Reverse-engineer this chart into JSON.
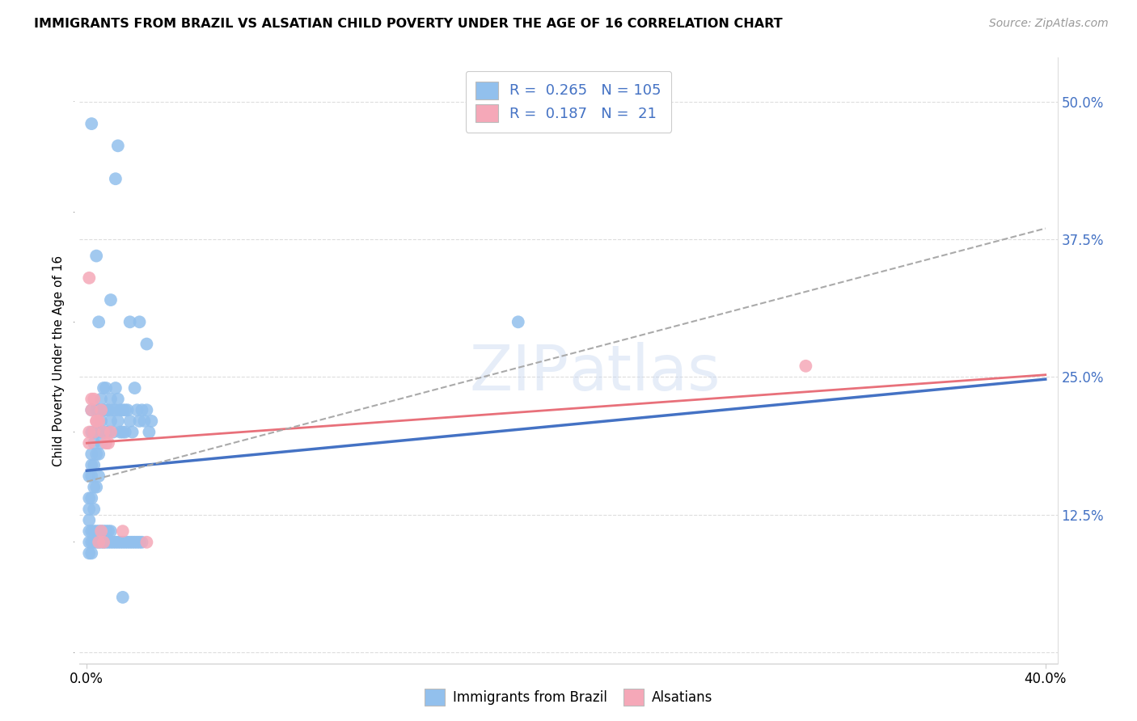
{
  "title": "IMMIGRANTS FROM BRAZIL VS ALSATIAN CHILD POVERTY UNDER THE AGE OF 16 CORRELATION CHART",
  "source": "Source: ZipAtlas.com",
  "ylabel": "Child Poverty Under the Age of 16",
  "legend_label1": "Immigrants from Brazil",
  "legend_label2": "Alsatians",
  "R1": "0.265",
  "N1": "105",
  "R2": "0.187",
  "N2": "21",
  "color_blue": "#92C0ED",
  "color_pink": "#F5A8B8",
  "color_blue_dark": "#4472C4",
  "color_pink_dark": "#E8707A",
  "color_gray_dashed": "#AAAAAA",
  "watermark": "ZIPatlas",
  "xlim": [
    0.0,
    0.4
  ],
  "ylim": [
    0.0,
    0.52
  ],
  "yticks": [
    0.0,
    0.125,
    0.25,
    0.375,
    0.5
  ],
  "ytick_labels": [
    "",
    "12.5%",
    "25.0%",
    "37.5%",
    "50.0%"
  ],
  "brazil_trend_start_y": 0.165,
  "brazil_trend_end_y": 0.248,
  "alsatian_trend_start_y": 0.19,
  "alsatian_trend_end_y": 0.252,
  "dashed_trend_start_y": 0.155,
  "dashed_trend_end_y": 0.385,
  "brazil_x": [
    0.001,
    0.001,
    0.001,
    0.001,
    0.001,
    0.002,
    0.002,
    0.002,
    0.002,
    0.002,
    0.002,
    0.003,
    0.003,
    0.003,
    0.003,
    0.003,
    0.004,
    0.004,
    0.004,
    0.004,
    0.005,
    0.005,
    0.005,
    0.005,
    0.006,
    0.006,
    0.006,
    0.007,
    0.007,
    0.007,
    0.008,
    0.008,
    0.008,
    0.009,
    0.009,
    0.01,
    0.01,
    0.011,
    0.011,
    0.012,
    0.012,
    0.013,
    0.013,
    0.014,
    0.014,
    0.015,
    0.015,
    0.016,
    0.016,
    0.017,
    0.018,
    0.019,
    0.02,
    0.021,
    0.022,
    0.023,
    0.024,
    0.025,
    0.026,
    0.027,
    0.001,
    0.001,
    0.002,
    0.002,
    0.002,
    0.003,
    0.003,
    0.004,
    0.004,
    0.005,
    0.005,
    0.006,
    0.006,
    0.007,
    0.007,
    0.008,
    0.008,
    0.009,
    0.009,
    0.01,
    0.01,
    0.011,
    0.012,
    0.013,
    0.014,
    0.015,
    0.016,
    0.017,
    0.018,
    0.019,
    0.02,
    0.021,
    0.022,
    0.023,
    0.18,
    0.002,
    0.012,
    0.018,
    0.013,
    0.022,
    0.004,
    0.005,
    0.025,
    0.01,
    0.015
  ],
  "brazil_y": [
    0.16,
    0.14,
    0.13,
    0.12,
    0.11,
    0.22,
    0.2,
    0.18,
    0.17,
    0.16,
    0.14,
    0.2,
    0.19,
    0.17,
    0.15,
    0.13,
    0.22,
    0.2,
    0.18,
    0.15,
    0.22,
    0.2,
    0.18,
    0.16,
    0.23,
    0.21,
    0.19,
    0.24,
    0.22,
    0.2,
    0.24,
    0.22,
    0.2,
    0.22,
    0.2,
    0.23,
    0.21,
    0.22,
    0.2,
    0.24,
    0.22,
    0.23,
    0.21,
    0.22,
    0.2,
    0.22,
    0.2,
    0.22,
    0.2,
    0.22,
    0.21,
    0.2,
    0.24,
    0.22,
    0.21,
    0.22,
    0.21,
    0.22,
    0.2,
    0.21,
    0.1,
    0.09,
    0.11,
    0.1,
    0.09,
    0.11,
    0.1,
    0.11,
    0.1,
    0.11,
    0.1,
    0.11,
    0.1,
    0.11,
    0.1,
    0.11,
    0.1,
    0.11,
    0.1,
    0.11,
    0.1,
    0.1,
    0.1,
    0.1,
    0.1,
    0.1,
    0.1,
    0.1,
    0.1,
    0.1,
    0.1,
    0.1,
    0.1,
    0.1,
    0.3,
    0.48,
    0.43,
    0.3,
    0.46,
    0.3,
    0.36,
    0.3,
    0.28,
    0.32,
    0.05
  ],
  "alsatian_x": [
    0.001,
    0.002,
    0.003,
    0.004,
    0.005,
    0.006,
    0.007,
    0.008,
    0.009,
    0.01,
    0.001,
    0.002,
    0.003,
    0.004,
    0.005,
    0.006,
    0.007,
    0.3,
    0.001,
    0.025,
    0.015
  ],
  "alsatian_y": [
    0.2,
    0.22,
    0.2,
    0.21,
    0.21,
    0.22,
    0.2,
    0.19,
    0.19,
    0.2,
    0.34,
    0.23,
    0.23,
    0.21,
    0.1,
    0.11,
    0.1,
    0.26,
    0.19,
    0.1,
    0.11
  ]
}
